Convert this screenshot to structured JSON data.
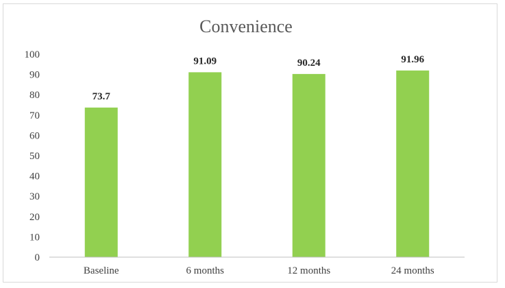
{
  "chart_data": {
    "type": "bar",
    "title": "Convenience",
    "categories": [
      "Baseline",
      "6 months",
      "12 months",
      "24 months"
    ],
    "values": [
      73.7,
      91.09,
      90.24,
      91.96
    ],
    "data_labels": [
      "73.7",
      "91.09",
      "90.24",
      "91.96"
    ],
    "ylim": [
      0,
      100
    ],
    "yticks": [
      0,
      10,
      20,
      30,
      40,
      50,
      60,
      70,
      80,
      90,
      100
    ],
    "grid": false,
    "legend": "none",
    "bar_color": "#92d050"
  }
}
